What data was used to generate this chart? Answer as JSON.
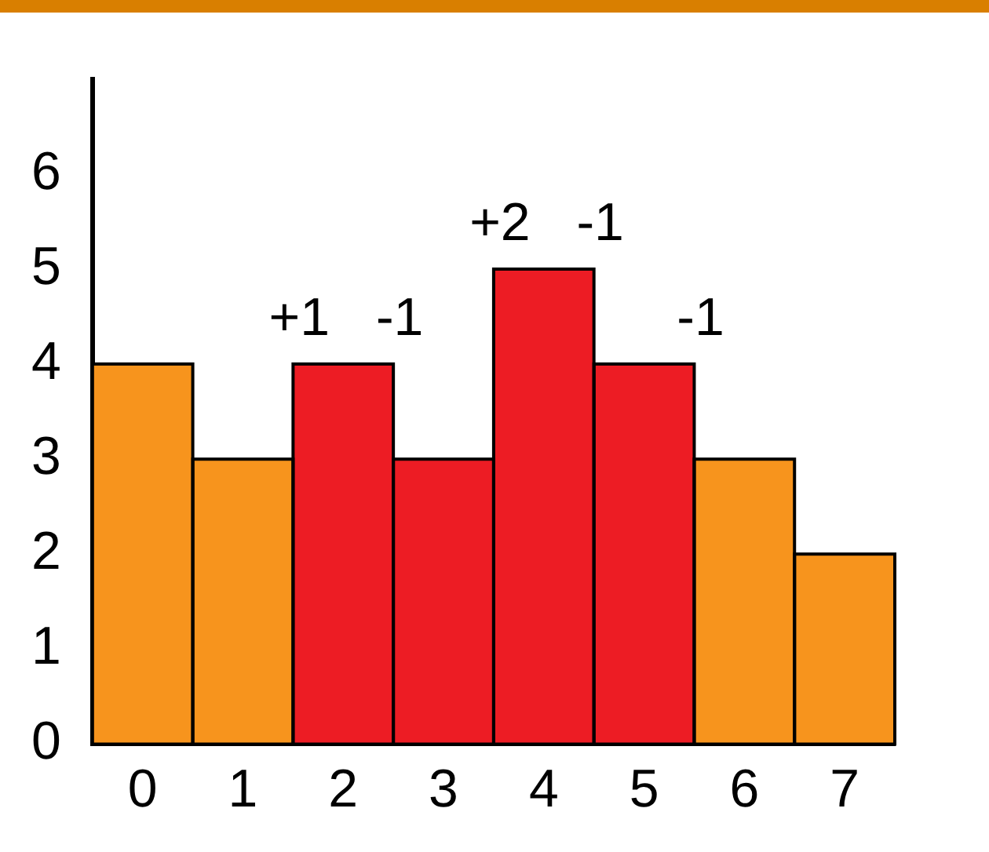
{
  "chart_data": {
    "type": "bar",
    "categories": [
      "0",
      "1",
      "2",
      "3",
      "4",
      "5",
      "6",
      "7"
    ],
    "values": [
      4,
      3,
      4,
      3,
      5,
      4,
      3,
      2
    ],
    "colors": [
      "#f7941d",
      "#f7941d",
      "#ed1c24",
      "#ed1c24",
      "#ed1c24",
      "#ed1c24",
      "#f7941d",
      "#f7941d"
    ],
    "ylim": [
      0,
      7
    ],
    "yticks": [
      0,
      1,
      2,
      3,
      4,
      5,
      6
    ],
    "grid": false,
    "legend": false,
    "annotations": [
      "+1",
      "-1",
      "+2",
      "-1",
      "-1"
    ]
  }
}
